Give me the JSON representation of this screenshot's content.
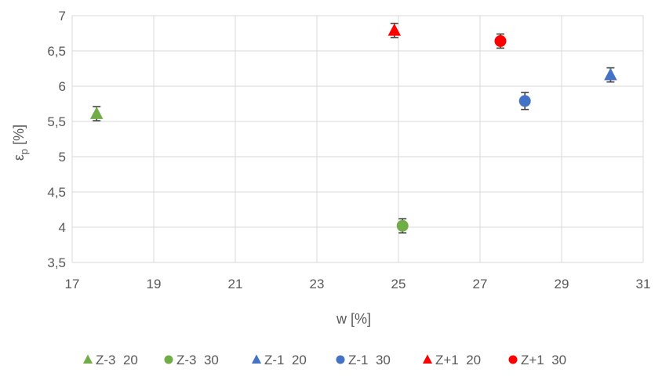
{
  "chart_data": {
    "type": "scatter",
    "title": "",
    "xlabel": "w [%]",
    "ylabel_main": "ε",
    "ylabel_sub": "p",
    "ylabel_unit": " [%]",
    "xlim": [
      17,
      31
    ],
    "ylim": [
      3.5,
      7
    ],
    "xticks": [
      17,
      19,
      21,
      23,
      25,
      27,
      29,
      31
    ],
    "xtick_labels": [
      "17",
      "19",
      "21",
      "23",
      "25",
      "27",
      "29",
      "31"
    ],
    "yticks": [
      3.5,
      4,
      4.5,
      5,
      5.5,
      6,
      6.5,
      7
    ],
    "ytick_labels": [
      "3,5",
      "4",
      "4,5",
      "5",
      "5,5",
      "6",
      "6,5",
      "7"
    ],
    "grid": true,
    "legend_position": "bottom",
    "series": [
      {
        "name": "Z-3  20",
        "marker": "triangle",
        "color": "#70ad47",
        "points": [
          {
            "x": 17.6,
            "y": 5.61,
            "err": 0.1
          }
        ]
      },
      {
        "name": "Z-3  30",
        "marker": "circle",
        "color": "#70ad47",
        "points": [
          {
            "x": 25.1,
            "y": 4.02,
            "err": 0.1
          }
        ]
      },
      {
        "name": "Z-1  20",
        "marker": "triangle",
        "color": "#4472c4",
        "points": [
          {
            "x": 30.2,
            "y": 6.16,
            "err": 0.1
          }
        ]
      },
      {
        "name": "Z-1  30",
        "marker": "circle",
        "color": "#4472c4",
        "points": [
          {
            "x": 28.1,
            "y": 5.79,
            "err": 0.12
          }
        ]
      },
      {
        "name": "Z+1  20",
        "marker": "triangle",
        "color": "#ff0000",
        "points": [
          {
            "x": 24.9,
            "y": 6.79,
            "err": 0.1
          }
        ]
      },
      {
        "name": "Z+1  30",
        "marker": "circle",
        "color": "#ff0000",
        "points": [
          {
            "x": 27.5,
            "y": 6.64,
            "err": 0.1
          }
        ]
      }
    ]
  }
}
